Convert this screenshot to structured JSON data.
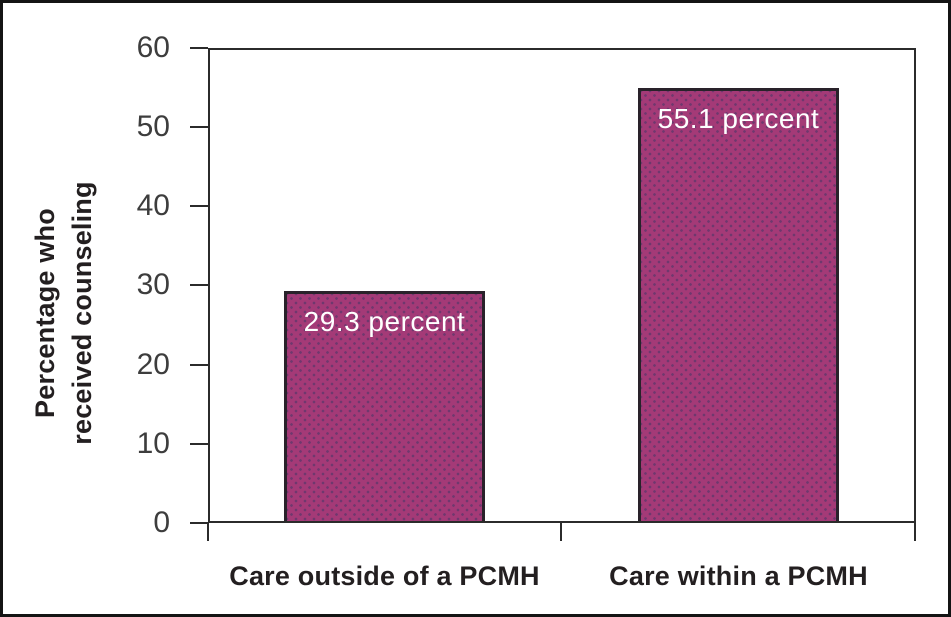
{
  "figure": {
    "background": "#ffffff",
    "outer_border_color": "#141414"
  },
  "chart_data": {
    "type": "bar",
    "categories": [
      "Care outside of a PCMH",
      "Care within a PCMH"
    ],
    "values": [
      29.3,
      55.1
    ],
    "data_labels": [
      "29.3 percent",
      "55.1 percent"
    ],
    "ylabel": "Percentage who received counseling",
    "ylabel_lines": [
      "Percentage who",
      "received counseling"
    ],
    "yticks": [
      0,
      10,
      20,
      30,
      40,
      50,
      60
    ],
    "ytick_labels_top_down": [
      "60",
      "50",
      "40",
      "30",
      "20",
      "10",
      "0"
    ],
    "ylim": [
      0,
      60
    ],
    "xlabel": "",
    "title": "",
    "grid": false,
    "legend": false,
    "colors": {
      "bar_color": "#a43a77",
      "bar_dot_color": "#6f386e",
      "bar_border_color": "#29222a",
      "bar_label_color": "#ffffff",
      "axis_color": "#2b2b2b",
      "tick_label_color": "#3d3d3d",
      "label_color": "#231f20"
    }
  }
}
